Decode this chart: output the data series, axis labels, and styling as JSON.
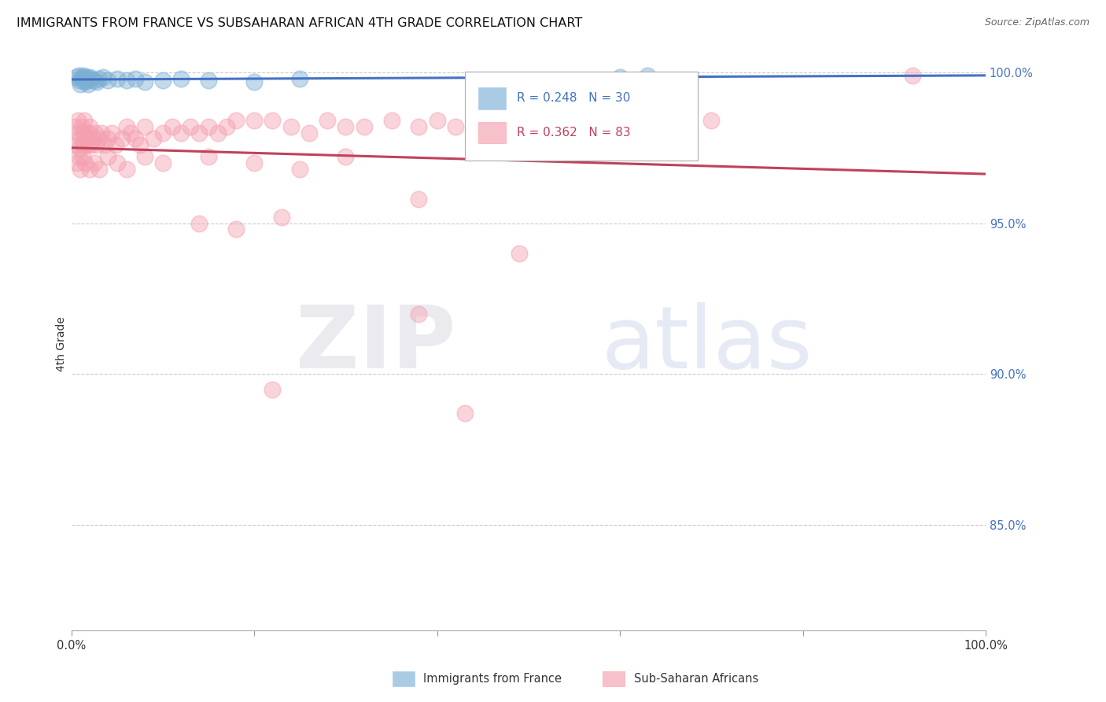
{
  "title": "IMMIGRANTS FROM FRANCE VS SUBSAHARAN AFRICAN 4TH GRADE CORRELATION CHART",
  "source": "Source: ZipAtlas.com",
  "ylabel": "4th Grade",
  "ytick_values": [
    0.85,
    0.9,
    0.95,
    1.0
  ],
  "xlim": [
    0.0,
    1.0
  ],
  "ylim": [
    0.815,
    1.005
  ],
  "blue_color": "#7BAFD4",
  "pink_color": "#F4A0B0",
  "blue_line_color": "#4472C4",
  "pink_line_color": "#C0415A",
  "legend1_label": "Immigrants from France",
  "legend2_label": "Sub-Saharan Africans",
  "watermark_zip": "ZIP",
  "watermark_atlas": "atlas",
  "blue_R": 0.248,
  "blue_N": 30,
  "pink_R": 0.362,
  "pink_N": 83,
  "blue_scatter_x": [
    0.005,
    0.008,
    0.009,
    0.01,
    0.011,
    0.012,
    0.013,
    0.014,
    0.015,
    0.016,
    0.017,
    0.018,
    0.02,
    0.022,
    0.025,
    0.028,
    0.03,
    0.035,
    0.04,
    0.05,
    0.06,
    0.07,
    0.08,
    0.1,
    0.12,
    0.15,
    0.2,
    0.25,
    0.6,
    0.63
  ],
  "blue_scatter_y": [
    0.9985,
    0.999,
    0.9975,
    0.996,
    0.998,
    0.9985,
    0.999,
    0.9975,
    0.997,
    0.9985,
    0.9975,
    0.996,
    0.9985,
    0.998,
    0.9975,
    0.997,
    0.998,
    0.9985,
    0.9975,
    0.998,
    0.9975,
    0.998,
    0.997,
    0.9975,
    0.998,
    0.9975,
    0.997,
    0.998,
    0.9985,
    0.999
  ],
  "pink_scatter_x": [
    0.004,
    0.006,
    0.007,
    0.008,
    0.009,
    0.01,
    0.011,
    0.012,
    0.013,
    0.014,
    0.015,
    0.016,
    0.017,
    0.018,
    0.019,
    0.02,
    0.022,
    0.024,
    0.026,
    0.028,
    0.03,
    0.033,
    0.036,
    0.04,
    0.044,
    0.048,
    0.055,
    0.06,
    0.065,
    0.07,
    0.075,
    0.08,
    0.09,
    0.1,
    0.11,
    0.12,
    0.13,
    0.14,
    0.15,
    0.16,
    0.17,
    0.18,
    0.2,
    0.22,
    0.24,
    0.26,
    0.28,
    0.3,
    0.32,
    0.35,
    0.38,
    0.4,
    0.42,
    0.45,
    0.48,
    0.006,
    0.008,
    0.01,
    0.012,
    0.015,
    0.02,
    0.025,
    0.03,
    0.04,
    0.05,
    0.06,
    0.08,
    0.1,
    0.15,
    0.2,
    0.25,
    0.3,
    0.65,
    0.7,
    0.38,
    0.23,
    0.18,
    0.14,
    0.38,
    0.22,
    0.92,
    0.49,
    0.43
  ],
  "pink_scatter_y": [
    0.982,
    0.976,
    0.984,
    0.98,
    0.975,
    0.978,
    0.982,
    0.976,
    0.98,
    0.984,
    0.976,
    0.98,
    0.978,
    0.976,
    0.98,
    0.982,
    0.976,
    0.978,
    0.98,
    0.976,
    0.978,
    0.98,
    0.976,
    0.978,
    0.98,
    0.976,
    0.978,
    0.982,
    0.98,
    0.978,
    0.976,
    0.982,
    0.978,
    0.98,
    0.982,
    0.98,
    0.982,
    0.98,
    0.982,
    0.98,
    0.982,
    0.984,
    0.984,
    0.984,
    0.982,
    0.98,
    0.984,
    0.982,
    0.982,
    0.984,
    0.982,
    0.984,
    0.982,
    0.984,
    0.984,
    0.97,
    0.972,
    0.968,
    0.972,
    0.97,
    0.968,
    0.97,
    0.968,
    0.972,
    0.97,
    0.968,
    0.972,
    0.97,
    0.972,
    0.97,
    0.968,
    0.972,
    0.984,
    0.984,
    0.958,
    0.952,
    0.948,
    0.95,
    0.92,
    0.895,
    0.999,
    0.94,
    0.887
  ],
  "background_color": "#FFFFFF",
  "grid_color": "#CCCCCC",
  "right_tick_color": "#4472C4"
}
